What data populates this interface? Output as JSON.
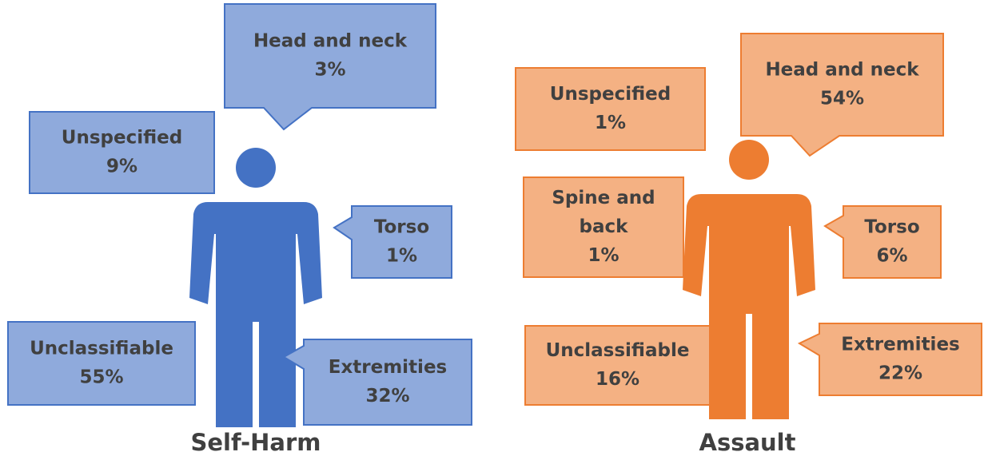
{
  "panels": [
    {
      "title": "Self-Harm",
      "callouts": [
        {
          "label": [
            "Head and neck"
          ],
          "value": "3%"
        },
        {
          "label": [
            "Unspecified"
          ],
          "value": "9%"
        },
        {
          "label": [
            "Torso"
          ],
          "value": "1%"
        },
        {
          "label": [
            "Unclassifiable"
          ],
          "value": "55%"
        },
        {
          "label": [
            "Extremities"
          ],
          "value": "32%"
        }
      ]
    },
    {
      "title": "Assault",
      "callouts": [
        {
          "label": [
            "Head and neck"
          ],
          "value": "54%"
        },
        {
          "label": [
            "Unspecified"
          ],
          "value": "1%"
        },
        {
          "label": [
            "Spine and",
            "back"
          ],
          "value": "1%"
        },
        {
          "label": [
            "Torso"
          ],
          "value": "6%"
        },
        {
          "label": [
            "Unclassifiable"
          ],
          "value": "16%"
        },
        {
          "label": [
            "Extremities"
          ],
          "value": "22%"
        }
      ]
    }
  ]
}
